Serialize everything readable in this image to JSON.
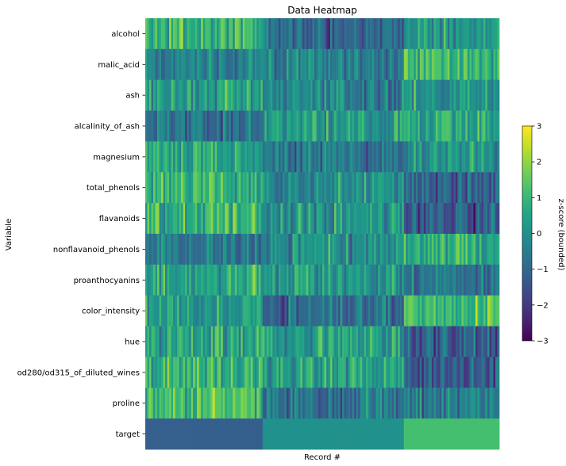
{
  "chart_data": {
    "type": "heatmap",
    "title": "Data Heatmap",
    "xlabel": "Record #",
    "ylabel": "Variable",
    "rows": [
      "alcohol",
      "malic_acid",
      "ash",
      "alcalinity_of_ash",
      "magnesium",
      "total_phenols",
      "flavanoids",
      "nonflavanoid_phenols",
      "proanthocyanins",
      "color_intensity",
      "hue",
      "od280/od315_of_diluted_wines",
      "proline",
      "target"
    ],
    "n_records": 178,
    "class_boundaries": [
      59,
      130
    ],
    "group_mean_z": {
      "alcohol": [
        0.9,
        -0.9,
        0.2
      ],
      "malic_acid": [
        -0.3,
        -0.4,
        1.0
      ],
      "ash": [
        0.3,
        -0.4,
        0.2
      ],
      "alcalinity_of_ash": [
        -0.8,
        0.3,
        0.6
      ],
      "magnesium": [
        0.5,
        -0.5,
        0.0
      ],
      "total_phenols": [
        0.9,
        0.0,
        -1.0
      ],
      "flavanoids": [
        1.0,
        0.0,
        -1.3
      ],
      "nonflavanoid_phenols": [
        -0.6,
        0.0,
        0.8
      ],
      "proanthocyanins": [
        0.5,
        0.1,
        -0.7
      ],
      "color_intensity": [
        0.2,
        -0.9,
        1.1
      ],
      "hue": [
        0.5,
        0.4,
        -1.2
      ],
      "od280/od315_of_diluted_wines": [
        0.8,
        0.3,
        -1.3
      ],
      "proline": [
        1.2,
        -0.7,
        -0.4
      ]
    },
    "target_z": [
      -1.2,
      0.0,
      1.2
    ],
    "colorbar": {
      "label": "z-score (bounded)",
      "min": -3,
      "max": 3,
      "ticks": [
        "3",
        "2",
        "1",
        "0",
        "−1",
        "−2",
        "−3"
      ]
    },
    "colormap": "viridis",
    "grid": false
  }
}
